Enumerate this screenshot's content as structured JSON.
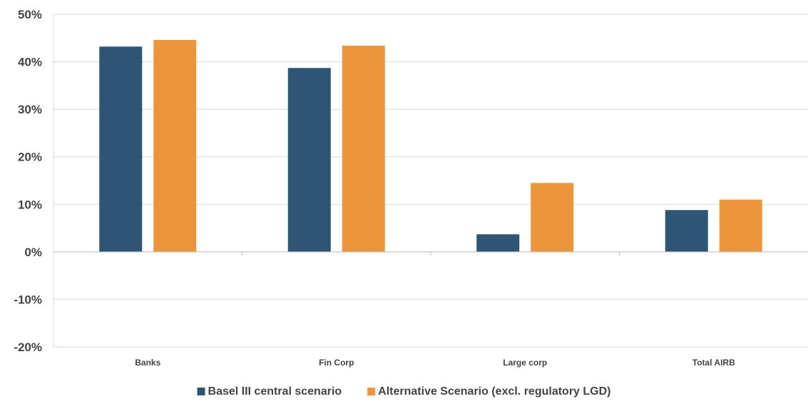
{
  "chart_data": {
    "type": "bar",
    "title": "",
    "xlabel": "",
    "ylabel": "",
    "categories": [
      "Banks",
      "Fin Corp",
      "Large corp",
      "Total AIRB"
    ],
    "series": [
      {
        "name": "Basel III central scenario",
        "values": [
          43.2,
          38.7,
          3.7,
          8.8
        ],
        "color": "#2e5573"
      },
      {
        "name": "Alternative Scenario (excl. regulatory LGD)",
        "values": [
          44.6,
          43.4,
          14.5,
          11.0
        ],
        "color": "#ec953a"
      }
    ],
    "ylim": [
      -20,
      50
    ],
    "yticks": [
      -20,
      -10,
      0,
      10,
      20,
      30,
      40,
      50
    ],
    "ytick_labels": [
      "-20%",
      "-10%",
      "0%",
      "10%",
      "20%",
      "30%",
      "40%",
      "50%"
    ],
    "grid": true,
    "legend_position": "bottom-center"
  }
}
